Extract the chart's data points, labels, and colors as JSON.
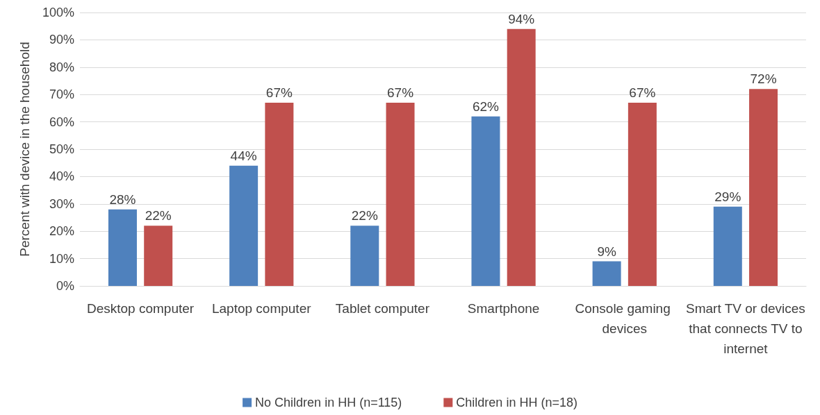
{
  "chart_data": {
    "type": "bar",
    "ylabel": "Percent with device in the household",
    "categories": [
      "Desktop computer",
      "Laptop computer",
      "Tablet computer",
      "Smartphone",
      "Console gaming devices",
      "Smart TV or devices that connects TV to internet"
    ],
    "series": [
      {
        "name": "No Children in HH (n=115)",
        "color": "#4f81bd",
        "values": [
          28,
          44,
          22,
          62,
          9,
          29
        ],
        "value_labels": [
          "28%",
          "44%",
          "22%",
          "62%",
          "9%",
          "29%"
        ]
      },
      {
        "name": "Children in HH (n=18)",
        "color": "#c0504d",
        "values": [
          22,
          67,
          67,
          94,
          67,
          72
        ],
        "value_labels": [
          "22%",
          "67%",
          "67%",
          "94%",
          "67%",
          "72%"
        ]
      }
    ],
    "ylim": [
      0,
      100
    ],
    "yticks": [
      {
        "value": 0,
        "label": "0%"
      },
      {
        "value": 10,
        "label": "10%"
      },
      {
        "value": 20,
        "label": "20%"
      },
      {
        "value": 30,
        "label": "30%"
      },
      {
        "value": 40,
        "label": "40%"
      },
      {
        "value": 50,
        "label": "50%"
      },
      {
        "value": 60,
        "label": "60%"
      },
      {
        "value": 70,
        "label": "70%"
      },
      {
        "value": 80,
        "label": "80%"
      },
      {
        "value": 90,
        "label": "90%"
      },
      {
        "value": 100,
        "label": "100%"
      }
    ],
    "grid": "y",
    "legend": "bottom"
  }
}
